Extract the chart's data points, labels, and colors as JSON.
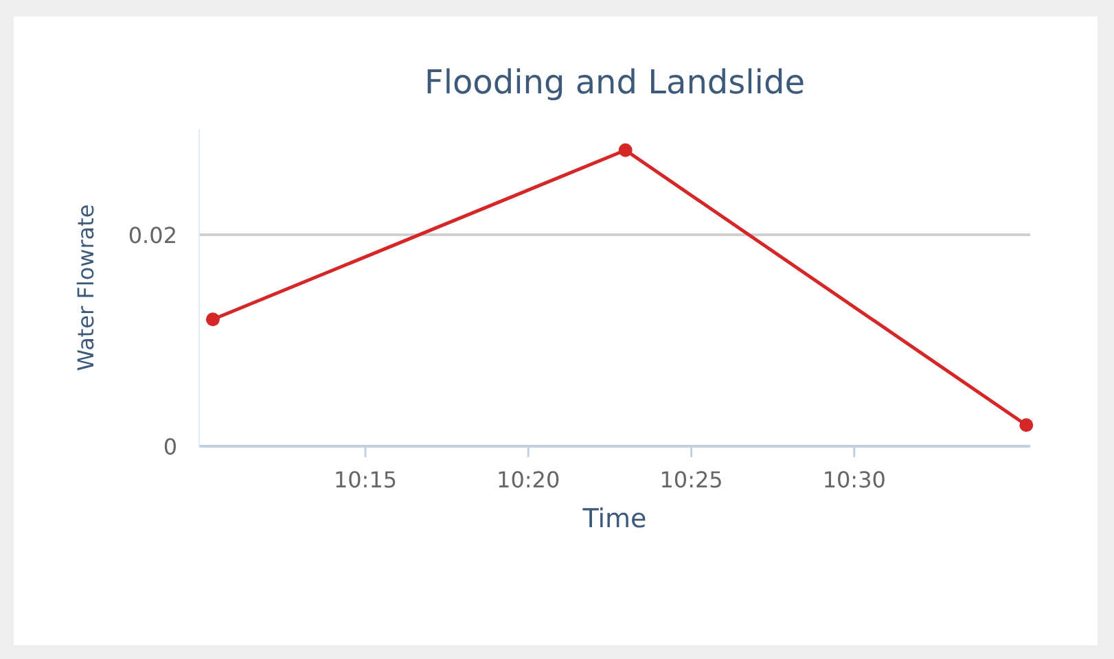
{
  "chart_data": {
    "type": "line",
    "title": "Flooding and Landslide",
    "xlabel": "Time",
    "ylabel": "Water Flowrate",
    "x": [
      10.172,
      10.383,
      10.588
    ],
    "series": [
      {
        "color": "#d62728",
        "values": [
          0.012,
          0.028,
          0.002
        ]
      }
    ],
    "xlim": [
      10.165,
      10.59
    ],
    "ylim": [
      0,
      0.03
    ],
    "xticks": [
      {
        "value": 10.25,
        "label": "10:15"
      },
      {
        "value": 10.3333,
        "label": "10:20"
      },
      {
        "value": 10.4167,
        "label": "10:25"
      },
      {
        "value": 10.5,
        "label": "10:30"
      }
    ],
    "yticks": [
      0,
      0.02
    ],
    "grid": "y",
    "marker": "circle",
    "line_style": "solid"
  }
}
